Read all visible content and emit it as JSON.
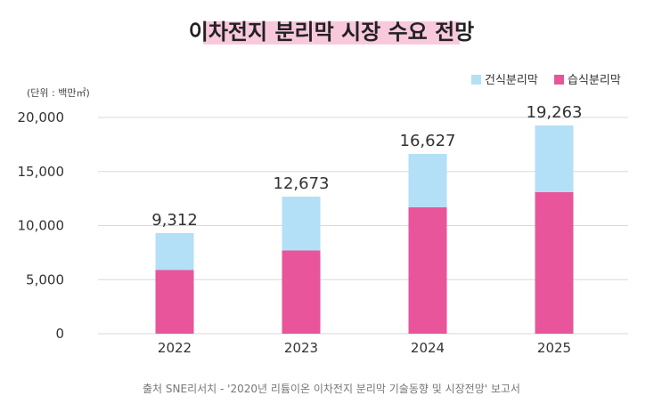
{
  "chart_data": {
    "type": "bar",
    "stacked": true,
    "title": "이차전지 분리막 시장 수요 전망",
    "unit_label": "(단위 : 백만㎡)",
    "categories": [
      "2022",
      "2023",
      "2024",
      "2025"
    ],
    "series": [
      {
        "name": "습식분리막",
        "color": "#e8559a",
        "values": [
          5900,
          7700,
          11700,
          13100
        ]
      },
      {
        "name": "건식분리막",
        "color": "#b3e0f7",
        "values": [
          3412,
          4973,
          4927,
          6163
        ]
      }
    ],
    "totals": [
      "9,312",
      "12,673",
      "16,627",
      "19,263"
    ],
    "total_values": [
      9312,
      12673,
      16627,
      19263
    ],
    "y_ticks": [
      "0",
      "5,000",
      "10,000",
      "15,000",
      "20,000"
    ],
    "y_tick_values": [
      0,
      5000,
      10000,
      15000,
      20000
    ],
    "ylim": [
      0,
      20000
    ],
    "grid": true,
    "legend_position": "top-right",
    "source": "출처 SNE리서치 - '2020년 리튬이온 이차전지 분리막 기술동향 및 시장전망' 보고서"
  }
}
